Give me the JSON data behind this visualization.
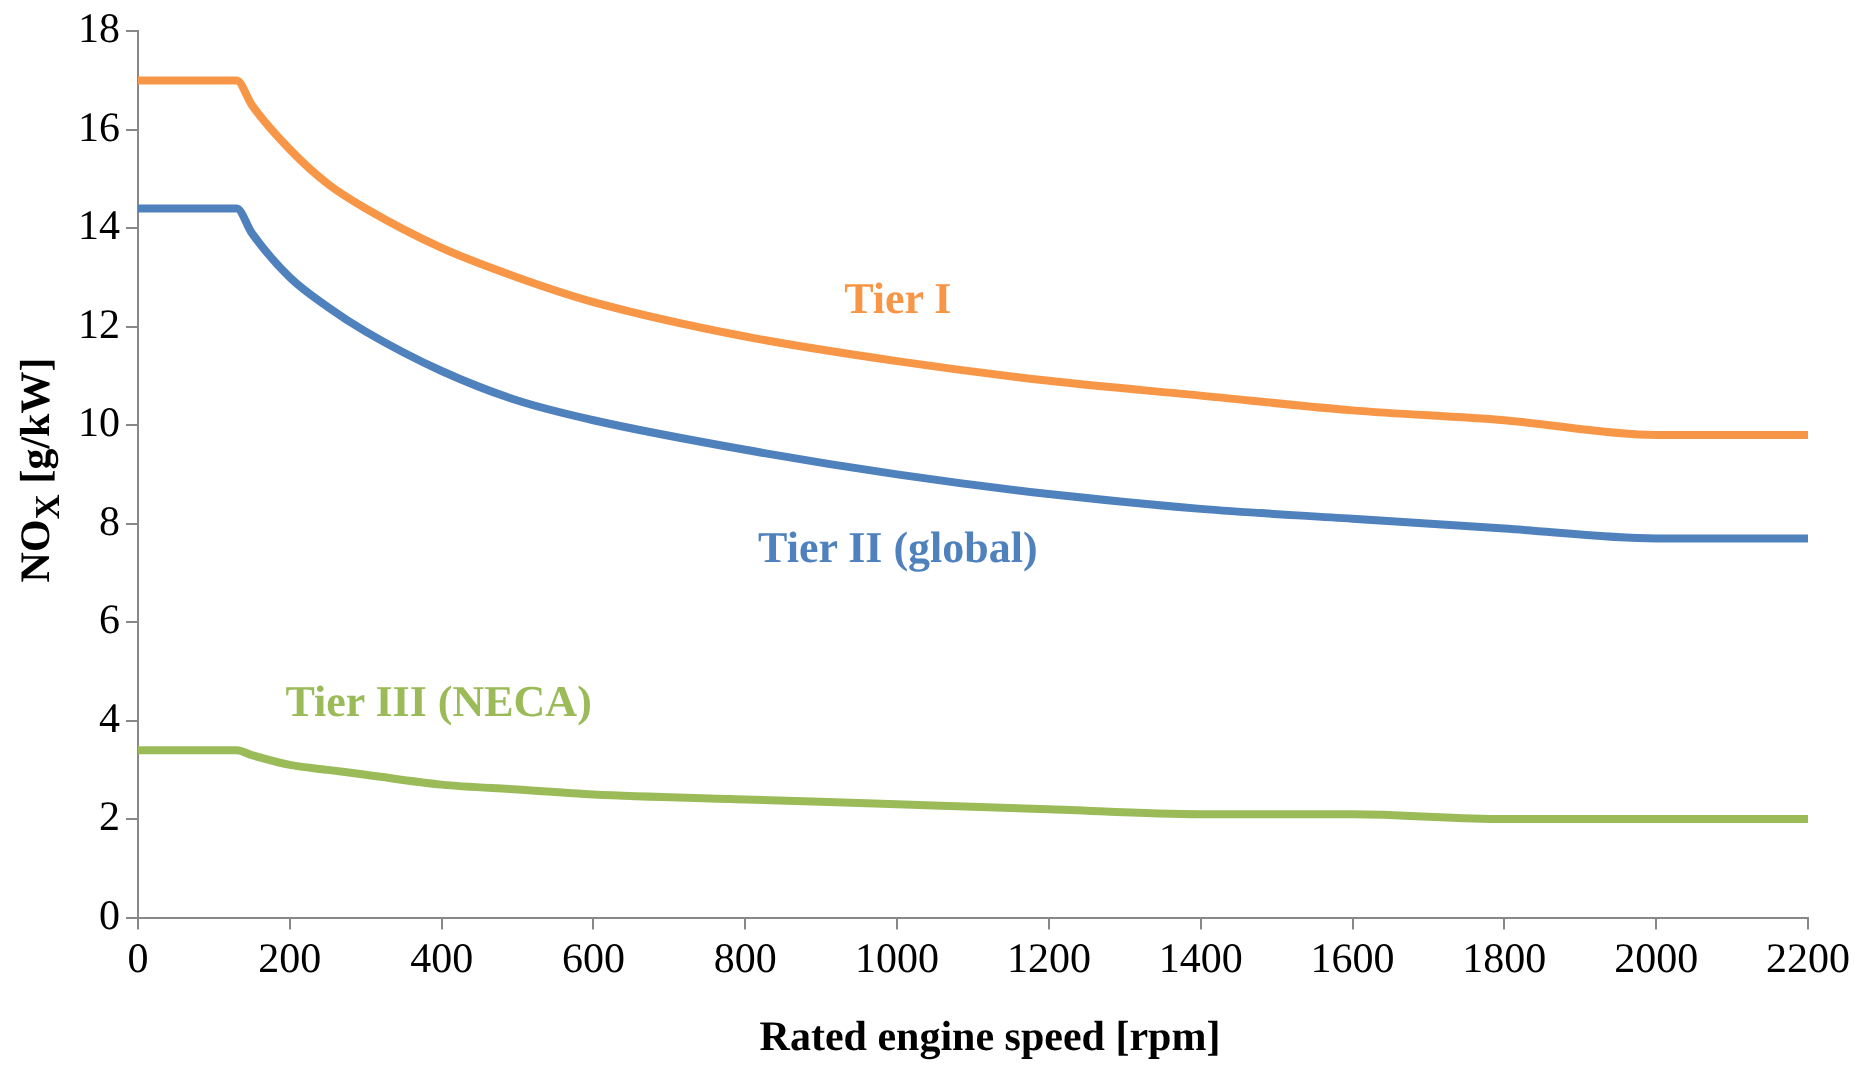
{
  "chart_data": {
    "type": "line",
    "xlabel": "Rated engine speed [rpm]",
    "ylabel": "NO$_{X}$ [g/kW]",
    "x": [
      0,
      130,
      150,
      200,
      250,
      300,
      400,
      500,
      600,
      800,
      1000,
      1200,
      1400,
      1600,
      1800,
      2000,
      2000,
      2200
    ],
    "series": [
      {
        "name": "Tier I",
        "color": "#f79646",
        "values": [
          17,
          17,
          16.5,
          15.6,
          14.9,
          14.4,
          13.6,
          13.0,
          12.5,
          11.8,
          11.3,
          10.9,
          10.6,
          10.3,
          10.1,
          9.8,
          9.8,
          9.8
        ]
      },
      {
        "name": "Tier II (global)",
        "color": "#4f81bd",
        "values": [
          14.4,
          14.4,
          13.9,
          13.0,
          12.4,
          11.9,
          11.1,
          10.5,
          10.1,
          9.5,
          9.0,
          8.6,
          8.3,
          8.1,
          7.9,
          7.7,
          7.7,
          7.7
        ]
      },
      {
        "name": "Tier III (NECA)",
        "color": "#9bbb59",
        "values": [
          3.4,
          3.4,
          3.3,
          3.1,
          3.0,
          2.9,
          2.7,
          2.6,
          2.5,
          2.4,
          2.3,
          2.2,
          2.1,
          2.1,
          2.0,
          2.0,
          2.0,
          2.0
        ]
      }
    ],
    "xlim": [
      0,
      2200
    ],
    "xticks": [
      0,
      200,
      400,
      600,
      800,
      1000,
      1200,
      1400,
      1600,
      1800,
      2000,
      2200
    ],
    "ylim": [
      0,
      18
    ],
    "yticks": [
      0,
      2,
      4,
      6,
      8,
      10,
      12,
      14,
      16,
      18
    ],
    "grid": false,
    "legend": false,
    "marker": "none",
    "line_style": "solid"
  }
}
